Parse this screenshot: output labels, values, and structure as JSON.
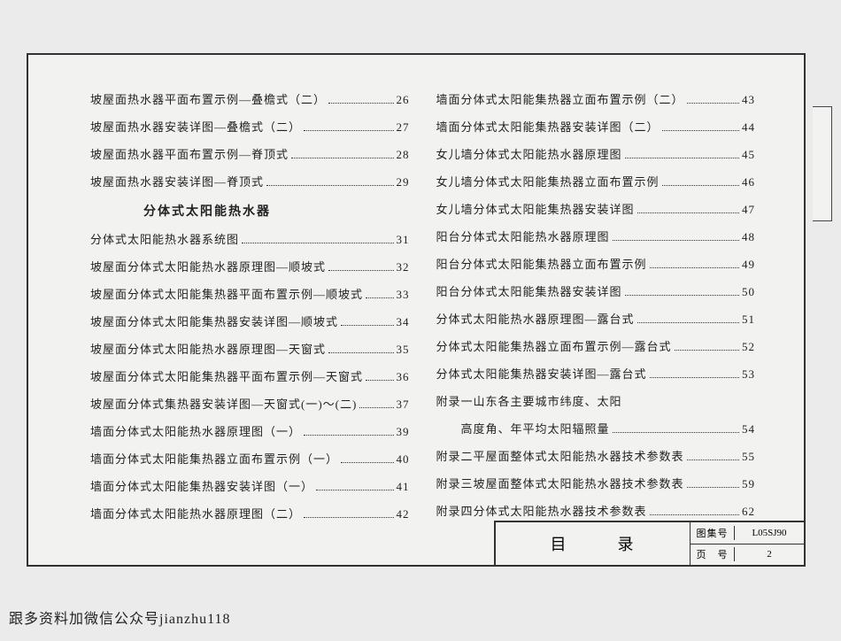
{
  "left": [
    {
      "title": "坡屋面热水器平面布置示例—叠檐式（二）",
      "page": "26"
    },
    {
      "title": "坡屋面热水器安装详图—叠檐式（二）",
      "page": "27"
    },
    {
      "title": "坡屋面热水器平面布置示例—脊顶式",
      "page": "28"
    },
    {
      "title": "坡屋面热水器安装详图—脊顶式",
      "page": "29"
    },
    {
      "section": "分体式太阳能热水器"
    },
    {
      "title": "分体式太阳能热水器系统图",
      "page": "31"
    },
    {
      "title": "坡屋面分体式太阳能热水器原理图—顺坡式",
      "page": "32"
    },
    {
      "title": "坡屋面分体式太阳能集热器平面布置示例—顺坡式",
      "page": "33"
    },
    {
      "title": "坡屋面分体式太阳能集热器安装详图—顺坡式",
      "page": "34"
    },
    {
      "title": "坡屋面分体式太阳能热水器原理图—天窗式",
      "page": "35"
    },
    {
      "title": "坡屋面分体式太阳能集热器平面布置示例—天窗式",
      "page": "36"
    },
    {
      "title": "坡屋面分体式集热器安装详图—天窗式(一)～(二)",
      "page": "37"
    },
    {
      "title": "墙面分体式太阳能热水器原理图（一）",
      "page": "39"
    },
    {
      "title": "墙面分体式太阳能集热器立面布置示例（一）",
      "page": "40"
    },
    {
      "title": "墙面分体式太阳能集热器安装详图（一）",
      "page": "41"
    },
    {
      "title": "墙面分体式太阳能热水器原理图（二）",
      "page": "42"
    }
  ],
  "right": [
    {
      "title": "墙面分体式太阳能集热器立面布置示例（二）",
      "page": "43"
    },
    {
      "title": "墙面分体式太阳能集热器安装详图（二）",
      "page": "44"
    },
    {
      "title": "女儿墙分体式太阳能热水器原理图",
      "page": "45"
    },
    {
      "title": "女儿墙分体式太阳能集热器立面布置示例",
      "page": "46"
    },
    {
      "title": "女儿墙分体式太阳能集热器安装详图",
      "page": "47"
    },
    {
      "title": "阳台分体式太阳能热水器原理图",
      "page": "48"
    },
    {
      "title": "阳台分体式太阳能集热器立面布置示例",
      "page": "49"
    },
    {
      "title": "阳台分体式太阳能集热器安装详图",
      "page": "50"
    },
    {
      "title": "分体式太阳能热水器原理图—露台式",
      "page": "51"
    },
    {
      "title": "分体式太阳能集热器立面布置示例—露台式",
      "page": "52"
    },
    {
      "title": "分体式太阳能集热器安装详图—露台式",
      "page": "53"
    },
    {
      "title": "附录一山东各主要城市纬度、太阳",
      "page": ""
    },
    {
      "title": "　　高度角、年平均太阳辐照量",
      "page": "54"
    },
    {
      "title": "附录二平屋面整体式太阳能热水器技术参数表",
      "page": "55"
    },
    {
      "title": "附录三坡屋面整体式太阳能热水器技术参数表",
      "page": "59"
    },
    {
      "title": "附录四分体式太阳能热水器技术参数表",
      "page": "62"
    }
  ],
  "titleBlock": {
    "main": "目　录",
    "setLabel": "图集号",
    "setVal": "L05SJ90",
    "pgLabel": "页　号",
    "pgVal": "2"
  },
  "footer": "跟多资料加微信公众号jianzhu118"
}
